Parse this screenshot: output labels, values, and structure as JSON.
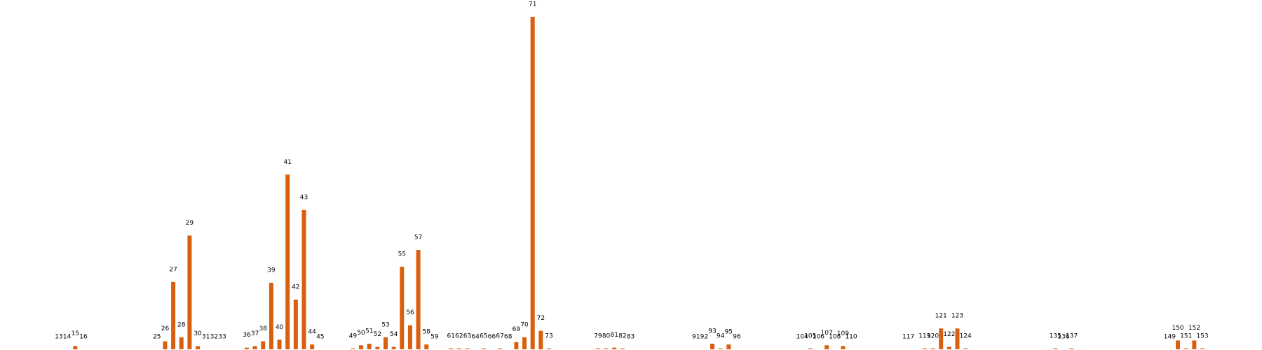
{
  "chart_data": {
    "type": "bar",
    "color": "#d95f0e",
    "x": [
      13,
      14,
      15,
      16,
      25,
      26,
      27,
      28,
      29,
      30,
      31,
      32,
      33,
      36,
      37,
      38,
      39,
      40,
      41,
      42,
      43,
      44,
      45,
      49,
      50,
      51,
      52,
      53,
      54,
      55,
      56,
      57,
      58,
      59,
      61,
      62,
      63,
      64,
      65,
      66,
      67,
      68,
      69,
      70,
      71,
      72,
      73,
      79,
      80,
      81,
      82,
      83,
      91,
      92,
      93,
      94,
      95,
      96,
      104,
      105,
      106,
      107,
      108,
      109,
      110,
      117,
      119,
      120,
      121,
      122,
      123,
      124,
      135,
      136,
      137,
      149,
      150,
      151,
      152,
      153
    ],
    "values": [
      0,
      0,
      4,
      0,
      0,
      10,
      84,
      15,
      142,
      4,
      0,
      0,
      0,
      2,
      4,
      10,
      83,
      12,
      218,
      62,
      174,
      6,
      0,
      1,
      5,
      7,
      3,
      15,
      3,
      103,
      30,
      124,
      6,
      0,
      1,
      1,
      1,
      0,
      1,
      0,
      1,
      0,
      9,
      15,
      415,
      23,
      1,
      1,
      1,
      2,
      1,
      0,
      0,
      0,
      7,
      1,
      6,
      0,
      0,
      1,
      0,
      5,
      0,
      4,
      0,
      0,
      1,
      1,
      26,
      3,
      26,
      1,
      1,
      0,
      1,
      0,
      11,
      1,
      11,
      1
    ]
  }
}
